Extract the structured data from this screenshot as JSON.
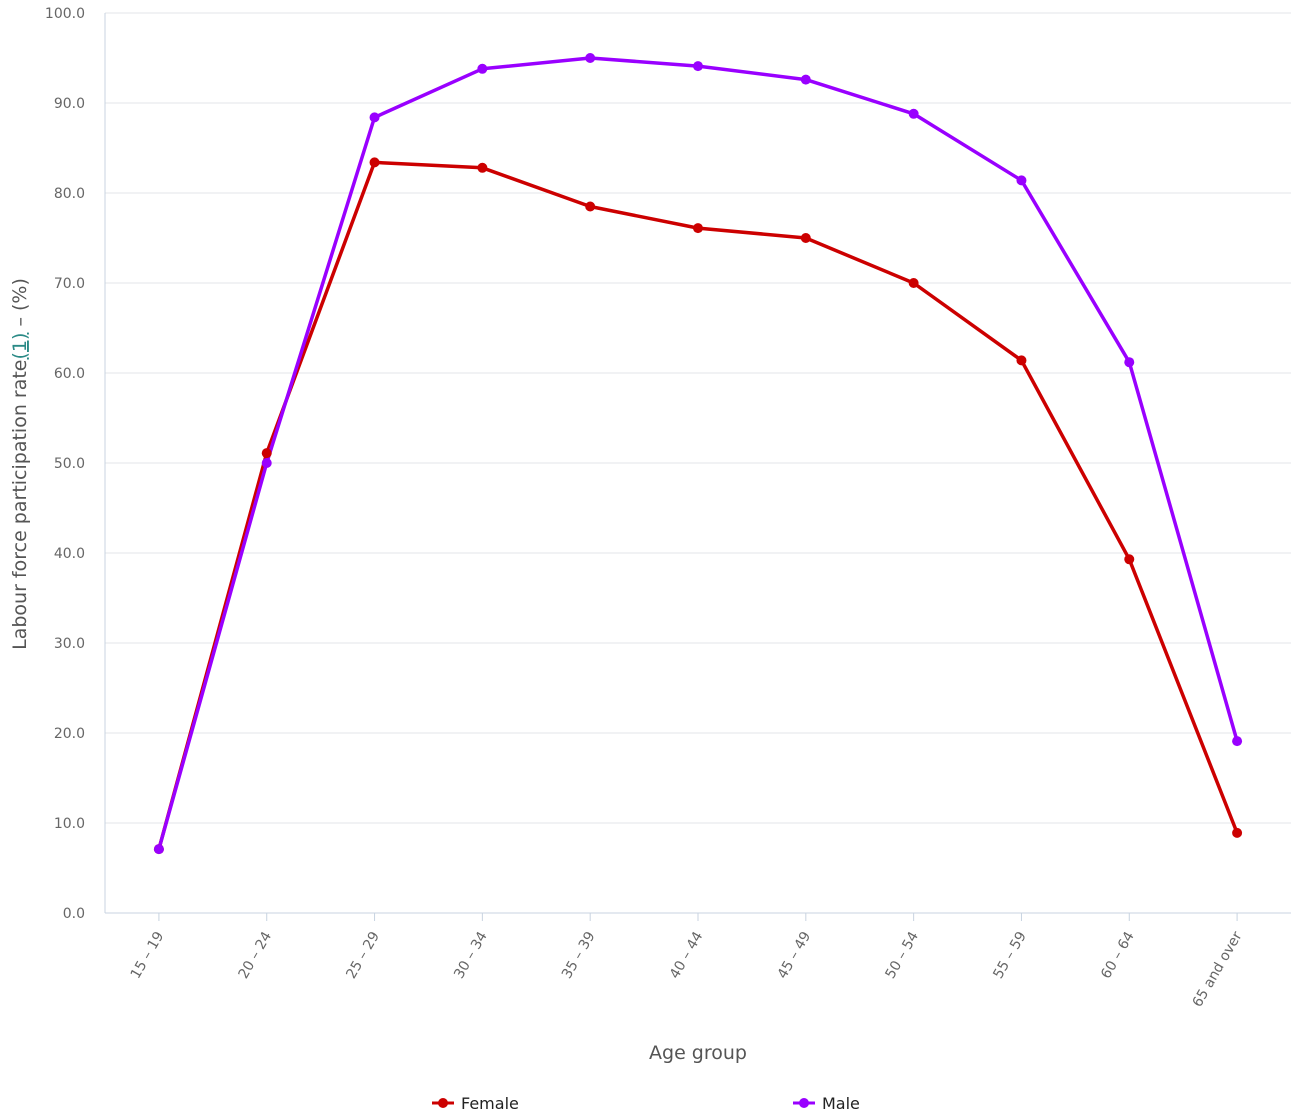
{
  "chart_data": {
    "type": "line",
    "xlabel": "Age group",
    "ylabel_prefix": "Labour force participation rate",
    "ylabel_footnote": "(1)",
    "ylabel_suffix": " – (%)",
    "ylim": [
      0,
      100
    ],
    "yticks": [
      "0.0",
      "10.0",
      "20.0",
      "30.0",
      "40.0",
      "50.0",
      "60.0",
      "70.0",
      "80.0",
      "90.0",
      "100.0"
    ],
    "categories": [
      "15 – 19",
      "20 – 24",
      "25 – 29",
      "30 – 34",
      "35 – 39",
      "40 – 44",
      "45 – 49",
      "50 – 54",
      "55 – 59",
      "60 – 64",
      "65 and over"
    ],
    "grid": true,
    "legend_position": "bottom",
    "series": [
      {
        "name": "Female",
        "color": "#cc0000",
        "values": [
          7.1,
          51.1,
          83.4,
          82.8,
          78.5,
          76.1,
          75.0,
          70.0,
          61.4,
          39.3,
          8.9
        ]
      },
      {
        "name": "Male",
        "color": "#9900ff",
        "values": [
          7.1,
          50.0,
          88.4,
          93.8,
          95.0,
          94.1,
          92.6,
          88.8,
          81.4,
          61.2,
          19.1
        ]
      }
    ]
  }
}
